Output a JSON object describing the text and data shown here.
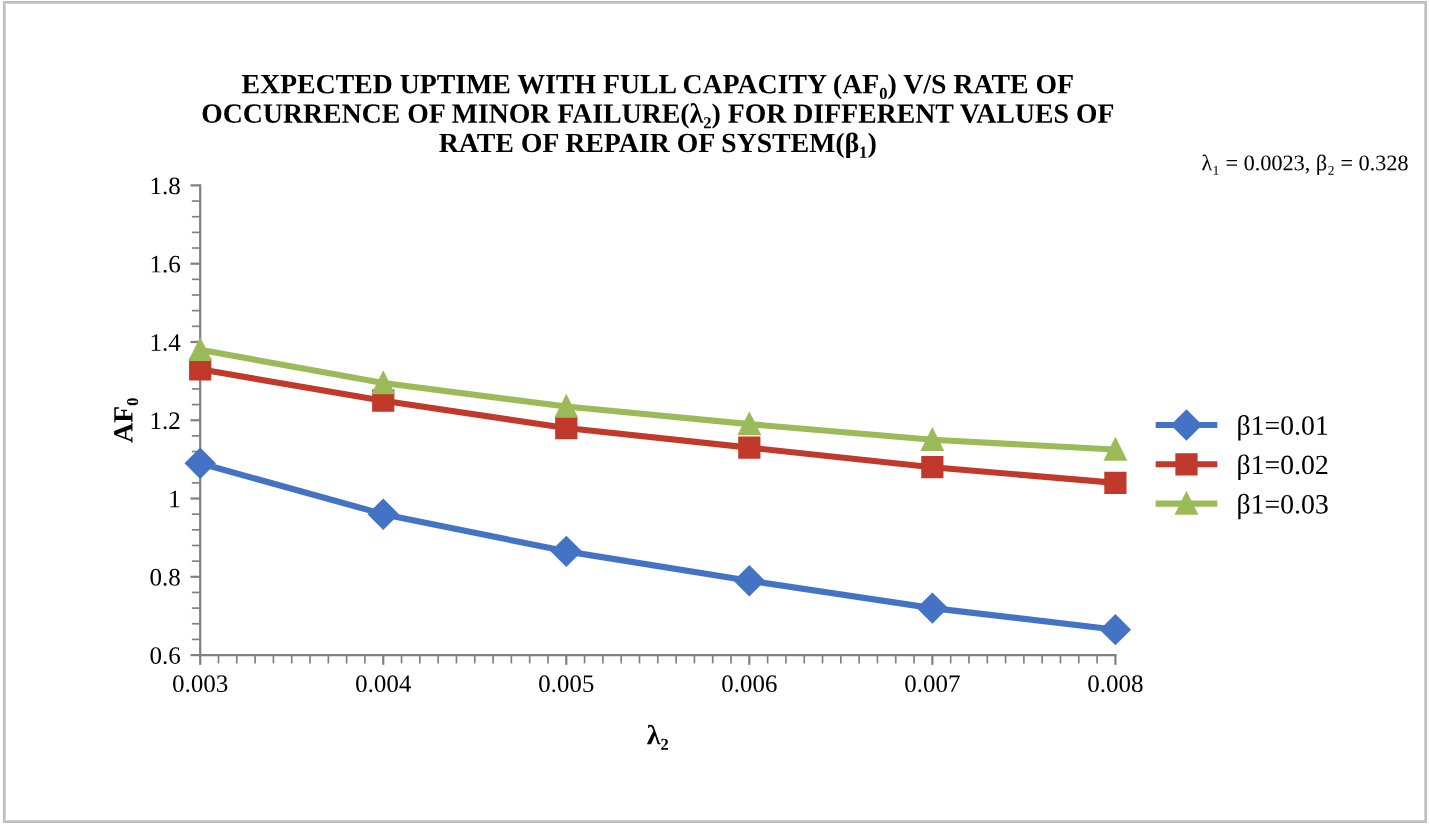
{
  "chart_data": {
    "type": "line",
    "title": "EXPECTED UPTIME WITH FULL CAPACITY (AF₀) V/S RATE OF\nOCCURRENCE OF MINOR FAILURE(λ₂) FOR DIFFERENT VALUES OF\nRATE OF REPAIR OF SYSTEM(β₁)",
    "xlabel": "λ₂",
    "ylabel": "AF₀",
    "annotations": [
      "λ₁ = 0.0023, β₂ = 0.328"
    ],
    "x": [
      0.003,
      0.004,
      0.005,
      0.006,
      0.007,
      0.008
    ],
    "series": [
      {
        "name": "β1=0.01",
        "color": "#4472c4",
        "marker": "diamond",
        "values": [
          1.09,
          0.96,
          0.865,
          0.79,
          0.72,
          0.665
        ]
      },
      {
        "name": "β1=0.02",
        "color": "#c0392b",
        "marker": "square",
        "values": [
          1.33,
          1.25,
          1.18,
          1.13,
          1.08,
          1.04
        ]
      },
      {
        "name": "β1=0.03",
        "color": "#9bbb59",
        "marker": "triangle",
        "values": [
          1.38,
          1.295,
          1.235,
          1.19,
          1.15,
          1.125
        ]
      }
    ],
    "xlim": [
      0.003,
      0.008
    ],
    "xticks": [
      0.003,
      0.004,
      0.005,
      0.006,
      0.007,
      0.008
    ],
    "ylim": [
      0.6,
      1.8
    ],
    "yticks": [
      {
        "value": 0.6,
        "label": "0.6"
      },
      {
        "value": 0.8,
        "label": "0.8"
      },
      1,
      {
        "value": 1.2,
        "label": "1.2"
      },
      {
        "value": 1.4,
        "label": "1.4"
      },
      {
        "value": 1.6,
        "label": "1.6"
      },
      {
        "value": 1.8,
        "label": "1.8"
      }
    ],
    "grid": false,
    "legend": "right",
    "line_style": "solid"
  }
}
